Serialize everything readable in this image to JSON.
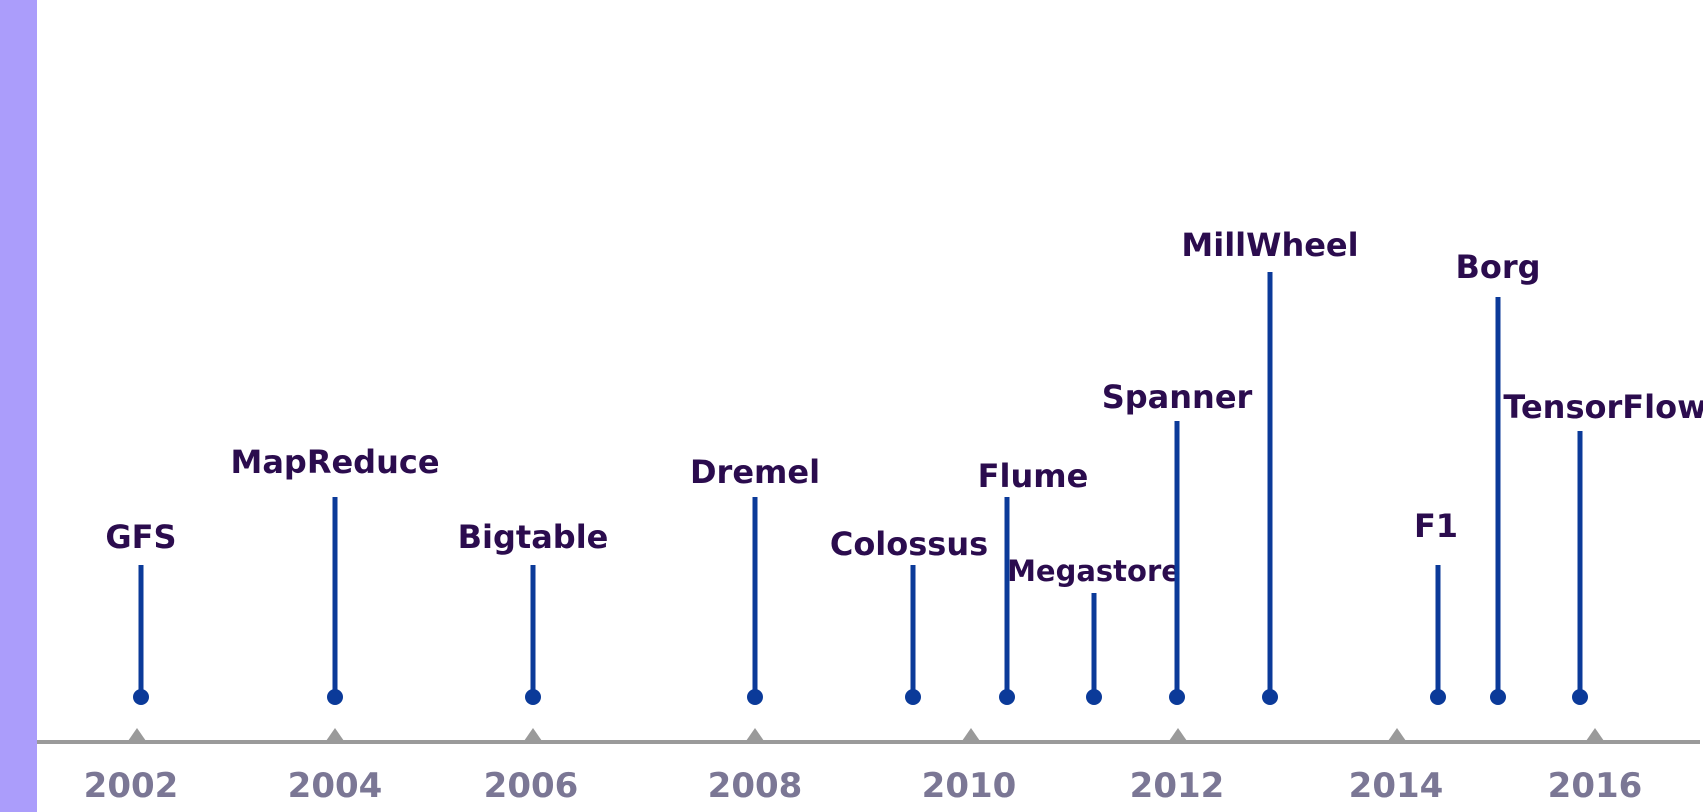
{
  "colors": {
    "sidebar": "#ab9dfb",
    "axis": "#9a9a9a",
    "stem": "#0b3a99",
    "event_text": "#2b0c4e",
    "year_text": "#7b7795"
  },
  "axis": {
    "years": [
      "2002",
      "2004",
      "2006",
      "2008",
      "2010",
      "2012",
      "2014",
      "2016"
    ]
  },
  "events": [
    {
      "name": "GFS",
      "year": 2003.0
    },
    {
      "name": "MapReduce",
      "year": 2004.0
    },
    {
      "name": "Bigtable",
      "year": 2006.0
    },
    {
      "name": "Dremel",
      "year": 2008.0
    },
    {
      "name": "Colossus",
      "year": 2009.5
    },
    {
      "name": "Flume",
      "year": 2010.3
    },
    {
      "name": "Megastore",
      "year": 2011.2
    },
    {
      "name": "Spanner",
      "year": 2012.0
    },
    {
      "name": "MillWheel",
      "year": 2012.9
    },
    {
      "name": "F1",
      "year": 2014.4
    },
    {
      "name": "Borg",
      "year": 2015.0
    },
    {
      "name": "TensorFlow",
      "year": 2015.8
    }
  ]
}
